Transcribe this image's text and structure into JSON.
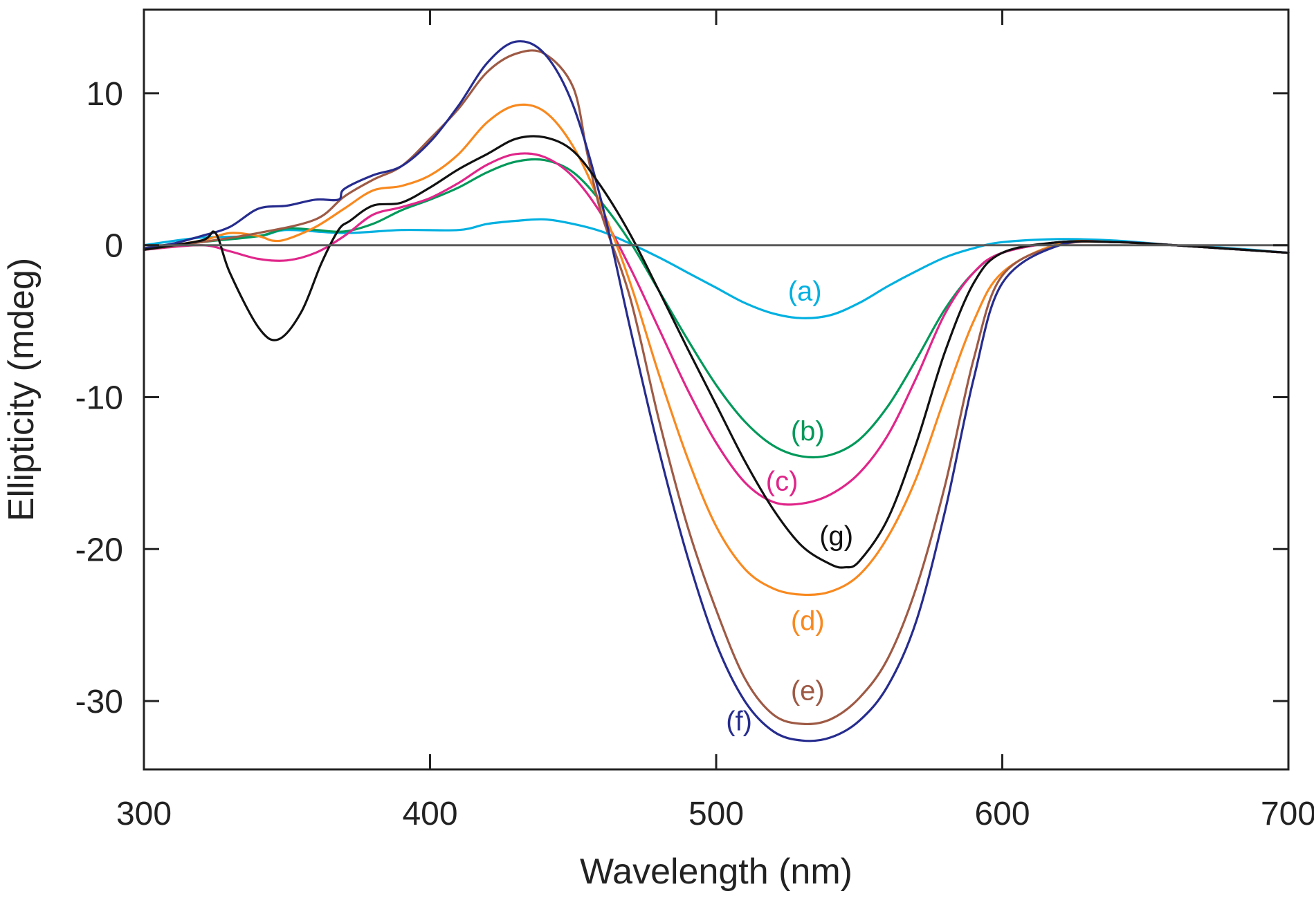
{
  "chart_data": {
    "type": "line",
    "title": "",
    "xlabel": "Wavelength (nm)",
    "ylabel": "Ellipticity (mdeg)",
    "xlim": [
      300,
      700
    ],
    "ylim": [
      -34.5,
      15.5
    ],
    "xticks": [
      300,
      400,
      500,
      600,
      700
    ],
    "yticks": [
      10,
      0,
      -10,
      -20,
      -30
    ],
    "xtick_labels": [
      "300",
      "400",
      "500",
      "600",
      "700"
    ],
    "ytick_labels": [
      "10",
      "0",
      "-10",
      "-20",
      "-30"
    ],
    "grid": false,
    "zero_line": 0,
    "series": [
      {
        "name": "(a)",
        "color": "#00b0e0",
        "label_pos": [
          531,
          -3
        ],
        "x": [
          300,
          320,
          340,
          350,
          370,
          390,
          410,
          420,
          430,
          440,
          450,
          460,
          470,
          480,
          490,
          500,
          510,
          520,
          530,
          540,
          550,
          560,
          570,
          580,
          590,
          600,
          620,
          640,
          660,
          680,
          700
        ],
        "y": [
          0,
          0.5,
          0.6,
          1,
          0.8,
          1.0,
          1.0,
          1.4,
          1.6,
          1.7,
          1.4,
          0.9,
          0.1,
          -0.8,
          -1.8,
          -2.8,
          -3.8,
          -4.5,
          -4.8,
          -4.6,
          -3.8,
          -2.7,
          -1.7,
          -0.8,
          -0.2,
          0.2,
          0.4,
          0.3,
          0,
          -0.2,
          -0.5
        ]
      },
      {
        "name": "(b)",
        "color": "#00995a",
        "label_pos": [
          532,
          -12.2
        ],
        "x": [
          300,
          320,
          340,
          350,
          360,
          370,
          380,
          390,
          400,
          410,
          420,
          430,
          440,
          450,
          460,
          470,
          480,
          490,
          500,
          510,
          520,
          530,
          540,
          550,
          560,
          570,
          580,
          590,
          600,
          620,
          640,
          660,
          700
        ],
        "y": [
          -0.3,
          0.2,
          0.6,
          1.1,
          1.0,
          0.9,
          1.4,
          2.3,
          3.0,
          3.8,
          4.8,
          5.5,
          5.6,
          4.8,
          2.8,
          0.2,
          -3.0,
          -6.2,
          -9.2,
          -11.6,
          -13.2,
          -13.9,
          -13.8,
          -12.8,
          -10.6,
          -7.5,
          -4.2,
          -1.8,
          -0.5,
          0.2,
          0.2,
          0,
          -0.5
        ]
      },
      {
        "name": "(c)",
        "color": "#e0268a",
        "label_pos": [
          523,
          -15.5
        ],
        "x": [
          300,
          320,
          330,
          340,
          350,
          360,
          370,
          380,
          390,
          400,
          410,
          420,
          430,
          440,
          450,
          460,
          470,
          480,
          490,
          500,
          510,
          520,
          530,
          540,
          550,
          560,
          570,
          580,
          590,
          600,
          620,
          640,
          660,
          700
        ],
        "y": [
          -0.3,
          0,
          -0.4,
          -0.9,
          -1.0,
          -0.5,
          0.6,
          2.0,
          2.5,
          3.1,
          4.1,
          5.3,
          6.0,
          5.8,
          4.5,
          2.0,
          -1.5,
          -5.5,
          -9.5,
          -13.0,
          -15.6,
          -16.9,
          -17.0,
          -16.4,
          -15.0,
          -12.5,
          -8.7,
          -4.5,
          -1.8,
          -0.5,
          0.2,
          0.2,
          0,
          -0.5
        ]
      },
      {
        "name": "(d)",
        "color": "#f8891f",
        "label_pos": [
          532,
          -24.7
        ],
        "x": [
          300,
          320,
          330,
          340,
          345,
          350,
          360,
          370,
          380,
          390,
          400,
          410,
          420,
          430,
          440,
          450,
          460,
          470,
          480,
          490,
          500,
          510,
          520,
          530,
          540,
          550,
          560,
          570,
          580,
          590,
          600,
          620,
          640,
          660,
          700
        ],
        "y": [
          -0.3,
          0.3,
          0.8,
          0.6,
          0.3,
          0.4,
          1.2,
          2.4,
          3.6,
          3.9,
          4.6,
          6.0,
          8.1,
          9.2,
          8.8,
          6.5,
          2.5,
          -2.5,
          -8.5,
          -14.0,
          -18.5,
          -21.3,
          -22.6,
          -23.0,
          -22.8,
          -21.7,
          -19.2,
          -15.3,
          -10.0,
          -5.0,
          -1.8,
          0.1,
          0.2,
          0,
          -0.5
        ]
      },
      {
        "name": "(e)",
        "color": "#9e5a45",
        "label_pos": [
          532,
          -29.3
        ],
        "x": [
          300,
          320,
          340,
          360,
          370,
          380,
          390,
          400,
          410,
          420,
          430,
          440,
          450,
          455,
          460,
          470,
          480,
          490,
          500,
          510,
          520,
          530,
          540,
          550,
          560,
          570,
          580,
          590,
          600,
          620,
          640,
          660,
          700
        ],
        "y": [
          -0.3,
          0.2,
          0.8,
          1.7,
          3.2,
          4.3,
          5.2,
          7.0,
          9.0,
          11.4,
          12.6,
          12.6,
          10.4,
          6.0,
          2.0,
          -3.5,
          -11.5,
          -18.5,
          -24.0,
          -28.5,
          -30.9,
          -31.5,
          -31.2,
          -29.8,
          -27.2,
          -22.5,
          -15.8,
          -7.5,
          -2.0,
          0,
          0.2,
          0,
          -0.5
        ]
      },
      {
        "name": "(f)",
        "color": "#262c8e",
        "label_pos": [
          508,
          -31.3
        ],
        "x": [
          300,
          310,
          320,
          330,
          340,
          350,
          360,
          368,
          370,
          380,
          390,
          400,
          410,
          420,
          430,
          440,
          450,
          460,
          470,
          480,
          490,
          500,
          510,
          520,
          530,
          540,
          550,
          560,
          570,
          580,
          590,
          600,
          620,
          640,
          660,
          700
        ],
        "y": [
          -0.2,
          0.1,
          0.6,
          1.2,
          2.4,
          2.6,
          3.0,
          3.0,
          3.7,
          4.6,
          5.2,
          6.8,
          9.2,
          12.0,
          13.4,
          12.6,
          9.2,
          2.8,
          -5.5,
          -13.5,
          -20.5,
          -26.2,
          -30.0,
          -32.0,
          -32.6,
          -32.4,
          -31.3,
          -29.0,
          -24.7,
          -17.5,
          -8.8,
          -2.5,
          0,
          0.2,
          0,
          -0.5
        ]
      },
      {
        "name": "(g)",
        "color": "#111111",
        "label_pos": [
          542,
          -19.1
        ],
        "x": [
          300,
          320,
          325,
          330,
          340,
          347,
          355,
          362,
          368,
          372,
          380,
          390,
          400,
          410,
          420,
          430,
          440,
          450,
          460,
          470,
          480,
          490,
          500,
          510,
          520,
          530,
          540,
          545,
          550,
          560,
          570,
          580,
          590,
          600,
          620,
          640,
          660,
          700
        ],
        "y": [
          -0.3,
          0.3,
          0.8,
          -1.8,
          -5.4,
          -6.2,
          -4.4,
          -1.2,
          1.0,
          1.6,
          2.6,
          2.8,
          3.8,
          5.0,
          6.0,
          7.0,
          7.1,
          6.2,
          3.8,
          0.7,
          -3.0,
          -6.8,
          -10.5,
          -14.2,
          -17.4,
          -19.8,
          -21.0,
          -21.2,
          -20.8,
          -18.0,
          -13.0,
          -7.0,
          -2.5,
          -0.5,
          0.2,
          0.2,
          0,
          -0.5
        ]
      }
    ]
  }
}
